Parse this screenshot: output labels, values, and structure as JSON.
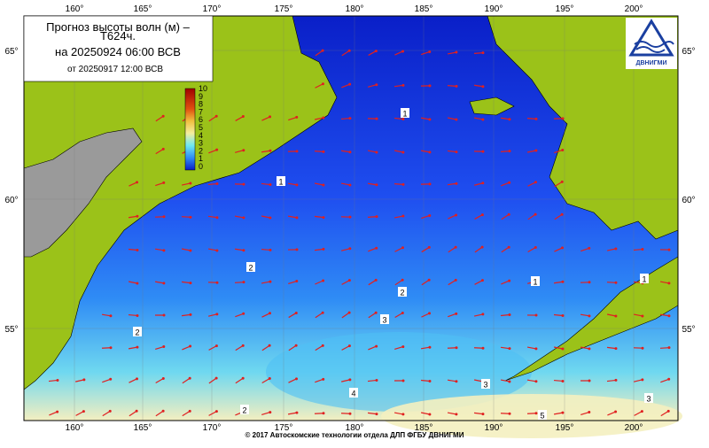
{
  "header": {
    "title_lines": [
      "Прогноз высоты волн (м) –",
      "Т624ч."
    ],
    "forecast_for": "на 20250924 06:00 ВСВ",
    "issued": "от 20250917 12:00 ВСВ"
  },
  "logo": {
    "text": "ДВНИГМИ"
  },
  "colorbar": {
    "labels": [
      "10",
      "9",
      "8",
      "7",
      "6",
      "5",
      "4",
      "3",
      "2",
      "1",
      "0"
    ]
  },
  "longitudes": [
    "160°",
    "165°",
    "170°",
    "175°",
    "180°",
    "185°",
    "190°",
    "195°",
    "200°"
  ],
  "latitudes": [
    "65°",
    "60°",
    "55°"
  ],
  "contour_labels": [
    "1",
    "1",
    "1",
    "1",
    "2",
    "2",
    "2",
    "3",
    "4",
    "3",
    "5",
    "3",
    "2"
  ],
  "footer": "© 2017 Автоскомские технологии отдела ДЛП ФГБУ ДВНИГМИ"
}
